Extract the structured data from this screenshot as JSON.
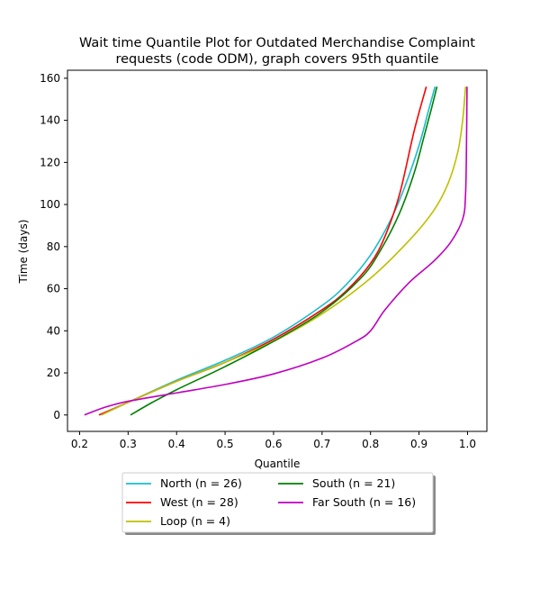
{
  "chart_data": {
    "type": "line",
    "title": "Wait time Quantile Plot for Outdated Merchandise Complaint\nrequests (code ODM), graph covers 95th quantile",
    "xlabel": "Quantile",
    "ylabel": "Time (days)",
    "xlim": [
      0.175,
      1.04
    ],
    "ylim": [
      -7.8,
      163.8
    ],
    "xticks": [
      0.2,
      0.3,
      0.4,
      0.5,
      0.6,
      0.7,
      0.8,
      0.9,
      1.0
    ],
    "xtick_labels": [
      "0.2",
      "0.3",
      "0.4",
      "0.5",
      "0.6",
      "0.7",
      "0.8",
      "0.9",
      "1.0"
    ],
    "yticks": [
      0,
      20,
      40,
      60,
      80,
      100,
      120,
      140,
      160
    ],
    "ytick_labels": [
      "0",
      "20",
      "40",
      "60",
      "80",
      "100",
      "120",
      "140",
      "160"
    ],
    "grid": false,
    "legend_position": "below-center",
    "legend_columns": 2,
    "series": [
      {
        "name": "North (n = 26)",
        "color": "#17becf",
        "points": [
          [
            0.245,
            0
          ],
          [
            0.3,
            6
          ],
          [
            0.4,
            16.5
          ],
          [
            0.5,
            26
          ],
          [
            0.6,
            37
          ],
          [
            0.7,
            52
          ],
          [
            0.75,
            62
          ],
          [
            0.8,
            76
          ],
          [
            0.84,
            92
          ],
          [
            0.87,
            108
          ],
          [
            0.9,
            128
          ],
          [
            0.92,
            145
          ],
          [
            0.933,
            156
          ]
        ]
      },
      {
        "name": "West (n = 28)",
        "color": "#ff0000",
        "points": [
          [
            0.24,
            0
          ],
          [
            0.3,
            6
          ],
          [
            0.4,
            16
          ],
          [
            0.5,
            25
          ],
          [
            0.6,
            36
          ],
          [
            0.7,
            50
          ],
          [
            0.75,
            59
          ],
          [
            0.8,
            72
          ],
          [
            0.83,
            85
          ],
          [
            0.86,
            105
          ],
          [
            0.89,
            135
          ],
          [
            0.915,
            156
          ]
        ]
      },
      {
        "name": "Loop (n = 4)",
        "color": "#bfbf00",
        "points": [
          [
            0.245,
            0
          ],
          [
            0.3,
            6
          ],
          [
            0.4,
            16
          ],
          [
            0.5,
            25
          ],
          [
            0.6,
            35
          ],
          [
            0.7,
            48
          ],
          [
            0.8,
            65
          ],
          [
            0.88,
            83
          ],
          [
            0.93,
            97
          ],
          [
            0.96,
            110
          ],
          [
            0.98,
            125
          ],
          [
            0.99,
            140
          ],
          [
            0.996,
            156
          ]
        ]
      },
      {
        "name": "South (n = 21)",
        "color": "#008000",
        "points": [
          [
            0.305,
            0
          ],
          [
            0.35,
            6
          ],
          [
            0.4,
            12
          ],
          [
            0.5,
            23
          ],
          [
            0.6,
            35
          ],
          [
            0.7,
            49
          ],
          [
            0.78,
            65
          ],
          [
            0.82,
            78
          ],
          [
            0.86,
            96
          ],
          [
            0.89,
            115
          ],
          [
            0.91,
            132
          ],
          [
            0.925,
            145
          ],
          [
            0.937,
            156
          ]
        ]
      },
      {
        "name": "Far South (n = 16)",
        "color": "#bf00bf",
        "points": [
          [
            0.21,
            0
          ],
          [
            0.25,
            3.5
          ],
          [
            0.3,
            6.5
          ],
          [
            0.4,
            10.5
          ],
          [
            0.5,
            14.5
          ],
          [
            0.6,
            19.5
          ],
          [
            0.7,
            27
          ],
          [
            0.77,
            35
          ],
          [
            0.8,
            40
          ],
          [
            0.83,
            50
          ],
          [
            0.88,
            63
          ],
          [
            0.93,
            73
          ],
          [
            0.965,
            82
          ],
          [
            0.99,
            93
          ],
          [
            0.996,
            105
          ],
          [
            0.998,
            130
          ],
          [
            0.999,
            156
          ]
        ]
      }
    ]
  }
}
